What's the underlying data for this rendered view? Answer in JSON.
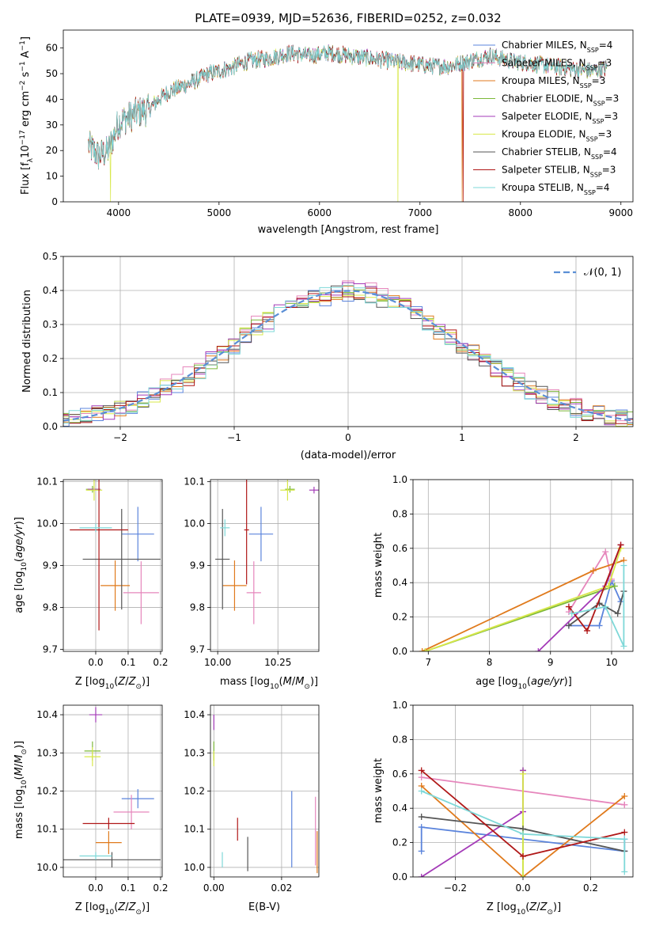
{
  "colors": {
    "Chabrier MILES": "#5b84dc",
    "Salpeter MILES": "#e686bc",
    "Kroupa MILES": "#e07a1c",
    "Chabrier ELODIE": "#7cb83a",
    "Salpeter ELODIE": "#a43bb8",
    "Kroupa ELODIE": "#d8e84a",
    "Chabrier STELIB": "#555555",
    "Salpeter STELIB": "#b01818",
    "Kroupa STELIB": "#7ed8d8",
    "gaussian": "#5b8fd6"
  },
  "chart_data": [
    {
      "id": "spectrum",
      "type": "line",
      "title": "PLATE=0939, MJD=52636, FIBERID=0252, z=0.032",
      "xlabel": "wavelength [Angstrom, rest frame]",
      "ylabel": "Flux [f",
      "ylabel_parts": [
        "Flux [f",
        "λ",
        "10",
        "−17",
        " erg cm",
        "−2",
        " s",
        "−1",
        " A",
        "−1",
        "]"
      ],
      "xlim": [
        3450,
        9120
      ],
      "ylim": [
        0,
        67
      ],
      "xticks": [
        4000,
        5000,
        6000,
        7000,
        8000,
        9000
      ],
      "yticks": [
        0,
        10,
        20,
        30,
        40,
        50,
        60
      ],
      "legend_position": "top-right",
      "legend": [
        {
          "name": "Chabrier MILES",
          "n": "4"
        },
        {
          "name": "Salpeter MILES",
          "n": "3"
        },
        {
          "name": "Kroupa MILES",
          "n": "3"
        },
        {
          "name": "Chabrier ELODIE",
          "n": "3"
        },
        {
          "name": "Salpeter ELODIE",
          "n": "3"
        },
        {
          "name": "Kroupa ELODIE",
          "n": "3"
        },
        {
          "name": "Chabrier STELIB",
          "n": "4"
        },
        {
          "name": "Salpeter STELIB",
          "n": "3"
        },
        {
          "name": "Kroupa STELIB",
          "n": "4"
        }
      ],
      "legend_label": "N",
      "legend_sub": "SSP",
      "continuum_x": [
        3700,
        3800,
        3900,
        4000,
        4100,
        4200,
        4300,
        4400,
        4500,
        4700,
        4900,
        5100,
        5300,
        5500,
        5700,
        5900,
        6100,
        6300,
        6500,
        6700,
        6900,
        7100,
        7300,
        7500,
        7700,
        7900,
        8100,
        8300,
        8500,
        8700,
        8850
      ],
      "continuum_y": [
        22,
        18,
        20,
        31,
        33,
        35,
        36,
        40,
        43,
        46,
        50,
        52,
        55,
        56,
        58,
        57,
        58,
        57,
        56,
        55,
        54,
        53,
        53,
        55,
        57,
        55,
        54,
        53,
        52,
        51,
        52
      ],
      "dropouts": [
        {
          "x": 3920,
          "series": "Kroupa ELODIE"
        },
        {
          "x": 6780,
          "series": "Kroupa ELODIE"
        },
        {
          "x": 7420,
          "series": "Kroupa MILES"
        },
        {
          "x": 7430,
          "series": "Salpeter STELIB"
        }
      ]
    },
    {
      "id": "residuals",
      "type": "histogram",
      "xlabel": "(data-model)/error",
      "ylabel": "Normed distribution",
      "xlim": [
        -2.5,
        2.5
      ],
      "ylim": [
        0,
        0.5
      ],
      "xticks": [
        -2,
        -1,
        0,
        1,
        2
      ],
      "yticks": [
        0.0,
        0.1,
        0.2,
        0.3,
        0.4,
        0.5
      ],
      "legend_position": "top-right",
      "reference": {
        "name": "𝒩(0, 1)",
        "mean": 0,
        "sigma": 1,
        "style": "dashed"
      },
      "bin_width": 0.1,
      "series": [
        {
          "name": "Chabrier MILES",
          "peak": 0.39,
          "max_bin": 0.4
        },
        {
          "name": "Salpeter MILES",
          "peak": 0.41,
          "max_bin": 0.47
        },
        {
          "name": "Kroupa MILES",
          "peak": 0.39,
          "max_bin": 0.43
        },
        {
          "name": "Chabrier ELODIE",
          "peak": 0.4,
          "max_bin": 0.48
        },
        {
          "name": "Salpeter ELODIE",
          "peak": 0.4,
          "max_bin": 0.44
        },
        {
          "name": "Kroupa ELODIE",
          "peak": 0.4,
          "max_bin": 0.46
        },
        {
          "name": "Chabrier STELIB",
          "peak": 0.39,
          "max_bin": 0.45
        },
        {
          "name": "Salpeter STELIB",
          "peak": 0.39,
          "max_bin": 0.43
        },
        {
          "name": "Kroupa STELIB",
          "peak": 0.39,
          "max_bin": 0.45
        }
      ]
    },
    {
      "id": "age_vs_Z",
      "type": "scatter",
      "xlabel": "Z [log",
      "ylabel": "age  [log",
      "xlim": [
        -0.1,
        0.205
      ],
      "ylim": [
        9.695,
        10.105
      ],
      "xticks": [
        0.0,
        0.1,
        0.2
      ],
      "yticks": [
        9.7,
        9.8,
        9.9,
        10.0,
        10.1
      ],
      "points": [
        {
          "series": "Chabrier MILES",
          "x": 0.13,
          "y": 9.975,
          "xerr": 0.05,
          "yerr": 0.065
        },
        {
          "series": "Salpeter MILES",
          "x": 0.14,
          "y": 9.835,
          "xerr": 0.055,
          "yerr": 0.075
        },
        {
          "series": "Kroupa MILES",
          "x": 0.06,
          "y": 9.852,
          "xerr": 0.045,
          "yerr": 0.06
        },
        {
          "series": "Chabrier ELODIE",
          "x": -0.01,
          "y": 10.082,
          "xerr": 0.02,
          "yerr": 0.008
        },
        {
          "series": "Salpeter ELODIE",
          "x": -0.005,
          "y": 10.082,
          "xerr": 0.02,
          "yerr": 0.006
        },
        {
          "series": "Kroupa ELODIE",
          "x": -0.005,
          "y": 10.08,
          "xerr": 0.025,
          "yerr": 0.025
        },
        {
          "series": "Chabrier STELIB",
          "x": 0.08,
          "y": 9.915,
          "xerr": 0.12,
          "yerr": 0.12
        },
        {
          "series": "Salpeter STELIB",
          "x": 0.01,
          "y": 9.985,
          "xerr": 0.09,
          "yerr": 0.24
        },
        {
          "series": "Kroupa STELIB",
          "x": 0.0,
          "y": 9.99,
          "xerr": 0.05,
          "yerr": 0.01
        }
      ]
    },
    {
      "id": "age_vs_mass",
      "type": "scatter",
      "xlabel": "mass [log",
      "xlim": [
        9.97,
        10.42
      ],
      "ylim": [
        9.695,
        10.105
      ],
      "xticks": [
        10.0,
        10.25
      ],
      "yticks": [
        9.7,
        9.8,
        9.9,
        10.0,
        10.1
      ],
      "points": [
        {
          "series": "Chabrier MILES",
          "x": 10.18,
          "y": 9.975,
          "xerr": 0.05,
          "yerr": 0.065
        },
        {
          "series": "Salpeter MILES",
          "x": 10.15,
          "y": 9.835,
          "xerr": 0.03,
          "yerr": 0.075
        },
        {
          "series": "Kroupa MILES",
          "x": 10.07,
          "y": 9.852,
          "xerr": 0.05,
          "yerr": 0.06
        },
        {
          "series": "Chabrier ELODIE",
          "x": 10.3,
          "y": 10.082,
          "xerr": 0.02,
          "yerr": 0.008
        },
        {
          "series": "Salpeter ELODIE",
          "x": 10.4,
          "y": 10.08,
          "xerr": 0.02,
          "yerr": 0.008
        },
        {
          "series": "Kroupa ELODIE",
          "x": 10.29,
          "y": 10.08,
          "xerr": 0.03,
          "yerr": 0.025
        },
        {
          "series": "Chabrier STELIB",
          "x": 10.02,
          "y": 9.915,
          "xerr": 0.03,
          "yerr": 0.12
        },
        {
          "series": "Salpeter STELIB",
          "x": 10.12,
          "y": 9.985,
          "xerr": 0.01,
          "yerr": 0.13
        },
        {
          "series": "Kroupa STELIB",
          "x": 10.03,
          "y": 9.99,
          "xerr": 0.02,
          "yerr": 0.02
        }
      ]
    },
    {
      "id": "weight_vs_age",
      "type": "line",
      "xlabel": "age  [log",
      "ylabel": "mass weight",
      "xlim": [
        6.75,
        10.35
      ],
      "ylim": [
        0.0,
        1.0
      ],
      "xticks": [
        7,
        8,
        9,
        10
      ],
      "yticks": [
        0.0,
        0.2,
        0.4,
        0.6,
        0.8,
        1.0
      ],
      "series": [
        {
          "name": "Chabrier MILES",
          "x": [
            9.3,
            9.8,
            10.0,
            10.15
          ],
          "y": [
            0.15,
            0.15,
            0.41,
            0.29
          ]
        },
        {
          "name": "Salpeter MILES",
          "x": [
            9.3,
            9.9,
            10.0
          ],
          "y": [
            0.23,
            0.58,
            0.42
          ]
        },
        {
          "name": "Kroupa MILES",
          "x": [
            6.9,
            9.7,
            10.2
          ],
          "y": [
            0.0,
            0.47,
            0.53
          ]
        },
        {
          "name": "Chabrier ELODIE",
          "x": [
            6.95,
            10.05
          ],
          "y": [
            0.0,
            0.38
          ]
        },
        {
          "name": "Salpeter ELODIE",
          "x": [
            8.8,
            9.9,
            10.15
          ],
          "y": [
            0.0,
            0.38,
            0.62
          ]
        },
        {
          "name": "Kroupa ELODIE",
          "x": [
            6.95,
            9.95,
            10.15
          ],
          "y": [
            0.0,
            0.38,
            0.6
          ]
        },
        {
          "name": "Chabrier STELIB",
          "x": [
            9.3,
            9.8,
            10.1,
            10.2
          ],
          "y": [
            0.15,
            0.28,
            0.22,
            0.35
          ]
        },
        {
          "name": "Salpeter STELIB",
          "x": [
            9.3,
            9.6,
            10.15
          ],
          "y": [
            0.26,
            0.12,
            0.62
          ]
        },
        {
          "name": "Kroupa STELIB",
          "x": [
            9.35,
            9.9,
            10.2,
            10.2
          ],
          "y": [
            0.22,
            0.26,
            0.03,
            0.5
          ]
        }
      ]
    },
    {
      "id": "mass_vs_Z",
      "type": "scatter",
      "xlabel": "Z [log",
      "ylabel": "mass [log",
      "xlim": [
        -0.1,
        0.205
      ],
      "ylim": [
        9.975,
        10.425
      ],
      "xticks": [
        0.0,
        0.1,
        0.2
      ],
      "yticks": [
        10.0,
        10.1,
        10.2,
        10.3,
        10.4
      ],
      "points": [
        {
          "series": "Chabrier MILES",
          "x": 0.13,
          "y": 10.18,
          "xerr": 0.05,
          "yerr": 0.025
        },
        {
          "series": "Salpeter MILES",
          "x": 0.11,
          "y": 10.145,
          "xerr": 0.055,
          "yerr": 0.045
        },
        {
          "series": "Kroupa MILES",
          "x": 0.04,
          "y": 10.065,
          "xerr": 0.04,
          "yerr": 0.03
        },
        {
          "series": "Chabrier ELODIE",
          "x": -0.01,
          "y": 10.305,
          "xerr": 0.025,
          "yerr": 0.025
        },
        {
          "series": "Salpeter ELODIE",
          "x": 0.0,
          "y": 10.4,
          "xerr": 0.02,
          "yerr": 0.02
        },
        {
          "series": "Kroupa ELODIE",
          "x": -0.01,
          "y": 10.29,
          "xerr": 0.025,
          "yerr": 0.025
        },
        {
          "series": "Chabrier STELIB",
          "x": 0.05,
          "y": 10.02,
          "xerr": 0.15,
          "yerr": 0.02
        },
        {
          "series": "Salpeter STELIB",
          "x": 0.04,
          "y": 10.115,
          "xerr": 0.08,
          "yerr": 0.015
        },
        {
          "series": "Kroupa STELIB",
          "x": 0.0,
          "y": 10.03,
          "xerr": 0.05,
          "yerr": 0.01
        }
      ]
    },
    {
      "id": "mass_vs_ebv",
      "type": "scatter",
      "xlabel": "E(B-V)",
      "xlim": [
        -0.001,
        0.031
      ],
      "ylim": [
        9.975,
        10.425
      ],
      "xticks": [
        0.0,
        0.02
      ],
      "yticks": [
        10.0,
        10.1,
        10.2,
        10.3,
        10.4
      ],
      "points": [
        {
          "series": "Chabrier MILES",
          "x": 0.023,
          "y": 10.1,
          "xerr": 0,
          "yerr": 0.1
        },
        {
          "series": "Salpeter MILES",
          "x": 0.03,
          "y": 10.095,
          "xerr": 0,
          "yerr": 0.09
        },
        {
          "series": "Kroupa MILES",
          "x": 0.0305,
          "y": 10.04,
          "xerr": 0,
          "yerr": 0.055
        },
        {
          "series": "Chabrier ELODIE",
          "x": 0.0,
          "y": 10.305,
          "xerr": 0,
          "yerr": 0.025
        },
        {
          "series": "Salpeter ELODIE",
          "x": 0.0,
          "y": 10.38,
          "xerr": 0,
          "yerr": 0.02
        },
        {
          "series": "Kroupa ELODIE",
          "x": 0.0,
          "y": 10.285,
          "xerr": 0,
          "yerr": 0.02
        },
        {
          "series": "Chabrier STELIB",
          "x": 0.01,
          "y": 10.035,
          "xerr": 0,
          "yerr": 0.045
        },
        {
          "series": "Salpeter STELIB",
          "x": 0.007,
          "y": 10.1,
          "xerr": 0,
          "yerr": 0.03
        },
        {
          "series": "Kroupa STELIB",
          "x": 0.0025,
          "y": 10.02,
          "xerr": 0,
          "yerr": 0.02
        }
      ]
    },
    {
      "id": "weight_vs_Z",
      "type": "line",
      "xlabel": "Z [log",
      "ylabel": "mass weight",
      "xlim": [
        -0.325,
        0.325
      ],
      "ylim": [
        0.0,
        1.0
      ],
      "xticks": [
        -0.2,
        0.0,
        0.2
      ],
      "yticks": [
        0.0,
        0.2,
        0.4,
        0.6,
        0.8,
        1.0
      ],
      "series": [
        {
          "name": "Chabrier MILES",
          "x": [
            -0.3,
            -0.3,
            0.3,
            0.3
          ],
          "y": [
            0.15,
            0.29,
            0.15,
            0.22
          ]
        },
        {
          "name": "Salpeter MILES",
          "x": [
            -0.3,
            0.3,
            0.3
          ],
          "y": [
            0.58,
            0.42,
            0.42
          ]
        },
        {
          "name": "Kroupa MILES",
          "x": [
            -0.3,
            0.0,
            0.3
          ],
          "y": [
            0.53,
            0.0,
            0.47
          ]
        },
        {
          "name": "Chabrier ELODIE",
          "x": [
            0.0,
            0.0
          ],
          "y": [
            0.0,
            0.62
          ]
        },
        {
          "name": "Salpeter ELODIE",
          "x": [
            -0.3,
            0.0,
            0.0
          ],
          "y": [
            0.0,
            0.38,
            0.62
          ]
        },
        {
          "name": "Kroupa ELODIE",
          "x": [
            0.0,
            0.0
          ],
          "y": [
            0.0,
            0.6
          ]
        },
        {
          "name": "Chabrier STELIB",
          "x": [
            -0.3,
            0.0,
            0.3
          ],
          "y": [
            0.35,
            0.28,
            0.15
          ]
        },
        {
          "name": "Salpeter STELIB",
          "x": [
            -0.3,
            0.0,
            0.3
          ],
          "y": [
            0.62,
            0.12,
            0.26
          ]
        },
        {
          "name": "Kroupa STELIB",
          "x": [
            -0.3,
            0.0,
            0.3,
            0.3
          ],
          "y": [
            0.5,
            0.25,
            0.22,
            0.03
          ]
        }
      ]
    }
  ]
}
